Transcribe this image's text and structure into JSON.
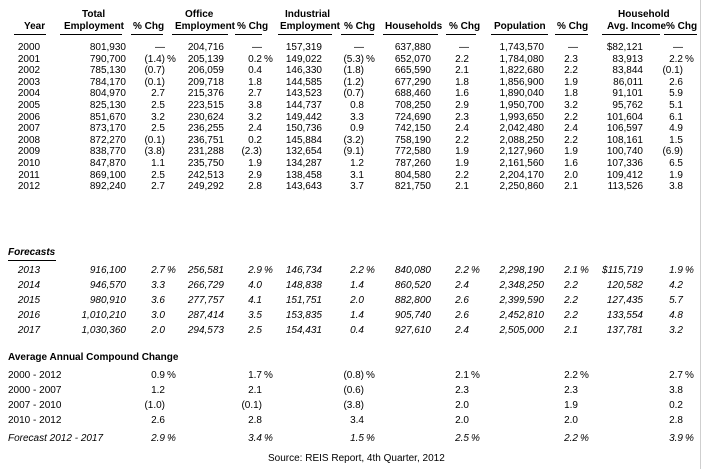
{
  "headers": {
    "year": "Year",
    "total": [
      "Total",
      "Employment"
    ],
    "office": [
      "Office",
      "Employment"
    ],
    "industrial": [
      "Industrial",
      "Employment"
    ],
    "households": "Households",
    "population": "Population",
    "hh_income": [
      "Household",
      "Avg. Income"
    ],
    "pct": "% Chg"
  },
  "pct_sign": "%",
  "historical": [
    [
      "2000",
      "801,930",
      "—",
      "204,716",
      "—",
      "157,319",
      "—",
      "637,880",
      "—",
      "1,743,570",
      "—",
      "$82,121",
      "—"
    ],
    [
      "2001",
      "790,700",
      "(1.4)",
      "205,139",
      "0.2",
      "149,022",
      "(5.3)",
      "652,070",
      "2.2",
      "1,784,080",
      "2.3",
      "83,913",
      "2.2"
    ],
    [
      "2002",
      "785,130",
      "(0.7)",
      "206,059",
      "0.4",
      "146,330",
      "(1.8)",
      "665,590",
      "2.1",
      "1,822,680",
      "2.2",
      "83,844",
      "(0.1)"
    ],
    [
      "2003",
      "784,170",
      "(0.1)",
      "209,718",
      "1.8",
      "144,585",
      "(1.2)",
      "677,290",
      "1.8",
      "1,856,900",
      "1.9",
      "86,011",
      "2.6"
    ],
    [
      "2004",
      "804,970",
      "2.7",
      "215,376",
      "2.7",
      "143,523",
      "(0.7)",
      "688,460",
      "1.6",
      "1,890,040",
      "1.8",
      "91,101",
      "5.9"
    ],
    [
      "2005",
      "825,130",
      "2.5",
      "223,515",
      "3.8",
      "144,737",
      "0.8",
      "708,250",
      "2.9",
      "1,950,700",
      "3.2",
      "95,762",
      "5.1"
    ],
    [
      "2006",
      "851,670",
      "3.2",
      "230,624",
      "3.2",
      "149,442",
      "3.3",
      "724,690",
      "2.3",
      "1,993,650",
      "2.2",
      "101,604",
      "6.1"
    ],
    [
      "2007",
      "873,170",
      "2.5",
      "236,255",
      "2.4",
      "150,736",
      "0.9",
      "742,150",
      "2.4",
      "2,042,480",
      "2.4",
      "106,597",
      "4.9"
    ],
    [
      "2008",
      "872,270",
      "(0.1)",
      "236,751",
      "0.2",
      "145,884",
      "(3.2)",
      "758,190",
      "2.2",
      "2,088,250",
      "2.2",
      "108,161",
      "1.5"
    ],
    [
      "2009",
      "838,770",
      "(3.8)",
      "231,288",
      "(2.3)",
      "132,654",
      "(9.1)",
      "772,580",
      "1.9",
      "2,127,960",
      "1.9",
      "100,740",
      "(6.9)"
    ],
    [
      "2010",
      "847,870",
      "1.1",
      "235,750",
      "1.9",
      "134,287",
      "1.2",
      "787,260",
      "1.9",
      "2,161,560",
      "1.6",
      "107,336",
      "6.5"
    ],
    [
      "2011",
      "869,100",
      "2.5",
      "242,513",
      "2.9",
      "138,458",
      "3.1",
      "804,580",
      "2.2",
      "2,204,170",
      "2.0",
      "109,412",
      "1.9"
    ],
    [
      "2012",
      "892,240",
      "2.7",
      "249,292",
      "2.8",
      "143,643",
      "3.7",
      "821,750",
      "2.1",
      "2,250,860",
      "2.1",
      "113,526",
      "3.8"
    ]
  ],
  "forecasts_label": "Forecasts",
  "forecasts": [
    [
      "2013",
      "916,100",
      "2.7",
      "256,581",
      "2.9",
      "146,734",
      "2.2",
      "840,080",
      "2.2",
      "2,298,190",
      "2.1",
      "$115,719",
      "1.9"
    ],
    [
      "2014",
      "946,570",
      "3.3",
      "266,729",
      "4.0",
      "148,838",
      "1.4",
      "860,520",
      "2.4",
      "2,348,250",
      "2.2",
      "120,582",
      "4.2"
    ],
    [
      "2015",
      "980,910",
      "3.6",
      "277,757",
      "4.1",
      "151,751",
      "2.0",
      "882,800",
      "2.6",
      "2,399,590",
      "2.2",
      "127,435",
      "5.7"
    ],
    [
      "2016",
      "1,010,210",
      "3.0",
      "287,414",
      "3.5",
      "153,835",
      "1.4",
      "905,740",
      "2.6",
      "2,452,810",
      "2.2",
      "133,554",
      "4.8"
    ],
    [
      "2017",
      "1,030,360",
      "2.0",
      "294,573",
      "2.5",
      "154,431",
      "0.4",
      "927,610",
      "2.4",
      "2,505,000",
      "2.1",
      "137,781",
      "3.2"
    ]
  ],
  "cagr_label": "Average Annual Compound Change",
  "cagr": [
    [
      "2000 - 2012",
      "0.9",
      "1.7",
      "(0.8)",
      "2.1",
      "2.2",
      "2.7"
    ],
    [
      "2000 - 2007",
      "1.2",
      "2.1",
      "(0.6)",
      "2.3",
      "2.3",
      "3.8"
    ],
    [
      "2007 - 2010",
      "(1.0)",
      "(0.1)",
      "(3.8)",
      "2.0",
      "1.9",
      "0.2"
    ],
    [
      "2010 - 2012",
      "2.6",
      "2.8",
      "3.4",
      "2.0",
      "2.0",
      "2.8"
    ]
  ],
  "cagr_forecast": [
    "Forecast 2012 - 2017",
    "2.9",
    "3.4",
    "1.5",
    "2.5",
    "2.2",
    "3.9"
  ],
  "source": "Source:  REIS Report, 4th Quarter, 2012"
}
